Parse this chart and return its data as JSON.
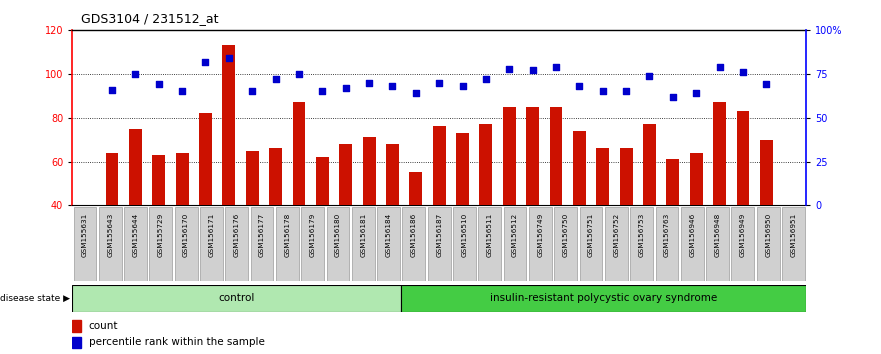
{
  "title": "GDS3104 / 231512_at",
  "samples": [
    "GSM155631",
    "GSM155643",
    "GSM155644",
    "GSM155729",
    "GSM156170",
    "GSM156171",
    "GSM156176",
    "GSM156177",
    "GSM156178",
    "GSM156179",
    "GSM156180",
    "GSM156181",
    "GSM156184",
    "GSM156186",
    "GSM156187",
    "GSM156510",
    "GSM156511",
    "GSM156512",
    "GSM156749",
    "GSM156750",
    "GSM156751",
    "GSM156752",
    "GSM156753",
    "GSM156763",
    "GSM156946",
    "GSM156948",
    "GSM156949",
    "GSM156950",
    "GSM156951"
  ],
  "count_values": [
    64,
    75,
    63,
    64,
    82,
    113,
    65,
    66,
    87,
    62,
    68,
    71,
    68,
    55,
    76,
    73,
    77,
    85,
    85,
    85,
    74,
    66,
    66,
    77,
    61,
    64,
    87,
    83,
    70
  ],
  "percentile_values": [
    66,
    75,
    69,
    65,
    82,
    84,
    65,
    72,
    75,
    65,
    67,
    70,
    68,
    64,
    70,
    68,
    72,
    78,
    77,
    79,
    68,
    65,
    65,
    74,
    62,
    64,
    79,
    76,
    69
  ],
  "control_count": 13,
  "disease_count": 16,
  "group1_label": "control",
  "group2_label": "insulin-resistant polycystic ovary syndrome",
  "ymin": 40,
  "ymax": 120,
  "yticks_left": [
    40,
    60,
    80,
    100,
    120
  ],
  "right_yticks_pct": [
    0,
    25,
    50,
    75,
    100
  ],
  "right_yticklabels": [
    "0",
    "25",
    "50",
    "75",
    "100%"
  ],
  "bar_color": "#cc1100",
  "dot_color": "#0000cc",
  "control_bg": "#b0e8b0",
  "disease_bg": "#44cc44",
  "legend_count": "count",
  "legend_pct": "percentile rank within the sample"
}
